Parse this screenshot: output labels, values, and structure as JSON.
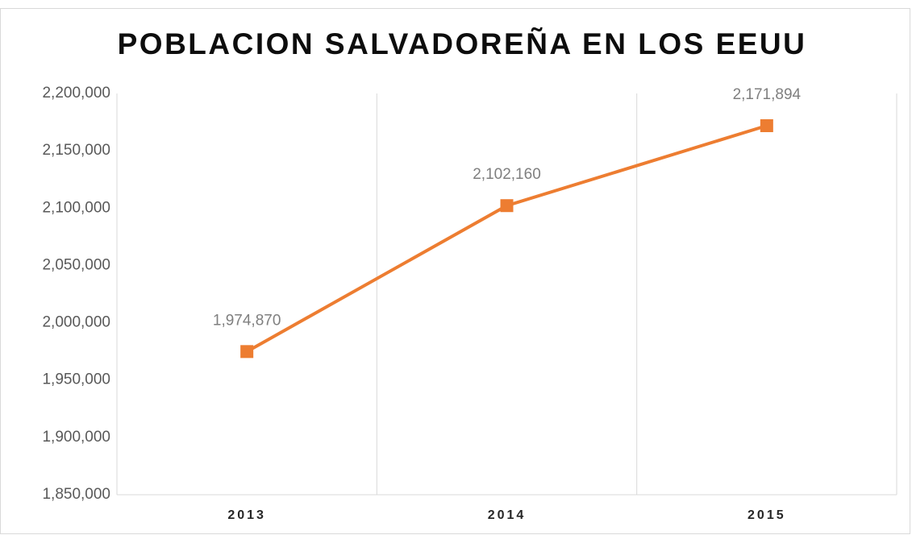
{
  "chart_data": {
    "type": "line",
    "title": "POBLACION SALVADOREÑA EN LOS EEUU",
    "categories": [
      "2013",
      "2014",
      "2015"
    ],
    "series": [
      {
        "name": "Poblacion",
        "color": "#ed7d31",
        "values": [
          1974870,
          2102160,
          2171894
        ],
        "value_labels": [
          "1,974,870",
          "2,102,160",
          "2,171,894"
        ]
      }
    ],
    "ylim": [
      1850000,
      2200000
    ],
    "yticks": [
      {
        "value": 1850000,
        "label": "1,850,000"
      },
      {
        "value": 1900000,
        "label": "1,900,000"
      },
      {
        "value": 1950000,
        "label": "1,950,000"
      },
      {
        "value": 2000000,
        "label": "2,000,000"
      },
      {
        "value": 2050000,
        "label": "2,050,000"
      },
      {
        "value": 2100000,
        "label": "2,100,000"
      },
      {
        "value": 2150000,
        "label": "2,150,000"
      },
      {
        "value": 2200000,
        "label": "2,200,000"
      }
    ],
    "grid": "x",
    "marker": "square"
  }
}
